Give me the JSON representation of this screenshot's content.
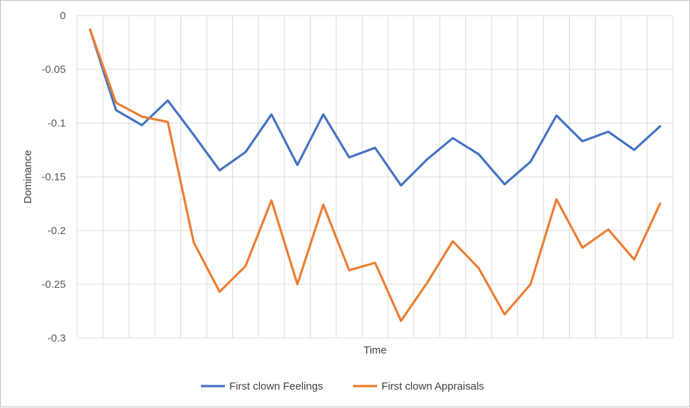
{
  "chart_data": {
    "type": "line",
    "xlabel": "Time",
    "ylabel": "Dominance",
    "ylim": [
      -0.3,
      0
    ],
    "yticks": [
      0,
      -0.05,
      -0.1,
      -0.15,
      -0.2,
      -0.25,
      -0.3
    ],
    "ytick_labels": [
      "0",
      "-0.05",
      "-0.1",
      "-0.15",
      "-0.2",
      "-0.25",
      "-0.3"
    ],
    "x_points": 23,
    "grid": "vertical and horizontal",
    "legend_position": "bottom",
    "series": [
      {
        "name": "First clown Feelings",
        "color": "#4472c4",
        "values": [
          -0.013,
          -0.088,
          -0.102,
          -0.079,
          -0.111,
          -0.144,
          -0.127,
          -0.092,
          -0.139,
          -0.092,
          -0.132,
          -0.123,
          -0.158,
          -0.134,
          -0.114,
          -0.129,
          -0.157,
          -0.136,
          -0.093,
          -0.117,
          -0.108,
          -0.125,
          -0.103
        ]
      },
      {
        "name": "First clown Appraisals",
        "color": "#ed7d31",
        "values": [
          -0.013,
          -0.081,
          -0.094,
          -0.099,
          -0.211,
          -0.257,
          -0.233,
          -0.172,
          -0.25,
          -0.176,
          -0.237,
          -0.23,
          -0.284,
          -0.249,
          -0.21,
          -0.235,
          -0.278,
          -0.25,
          -0.171,
          -0.216,
          -0.199,
          -0.227,
          -0.175
        ]
      }
    ]
  }
}
